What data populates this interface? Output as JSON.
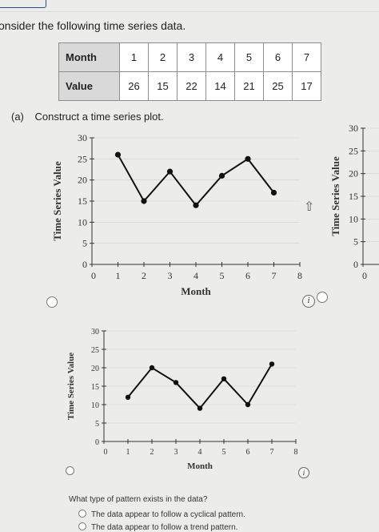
{
  "intro_text": "onsider the following time series data.",
  "table": {
    "month_label": "Month",
    "value_label": "Value",
    "months": [
      "1",
      "2",
      "3",
      "4",
      "5",
      "6",
      "7"
    ],
    "values": [
      "26",
      "15",
      "22",
      "14",
      "21",
      "25",
      "17"
    ]
  },
  "part_a": {
    "label": "(a)",
    "text": "Construct a time series plot."
  },
  "question": "What type of pattern exists in the data?",
  "options": [
    "The data appear to follow a cyclical pattern.",
    "The data appear to follow a trend pattern."
  ],
  "chart_data": [
    {
      "type": "line",
      "xlabel": "Month",
      "ylabel": "Time Series Value",
      "x": [
        1,
        2,
        3,
        4,
        5,
        6,
        7
      ],
      "y": [
        26,
        15,
        22,
        14,
        21,
        25,
        17
      ],
      "xlim": [
        0,
        8
      ],
      "ylim": [
        0,
        30
      ],
      "xticks": [
        "0",
        "1",
        "2",
        "3",
        "4",
        "5",
        "6",
        "7",
        "8"
      ],
      "yticks": [
        "0",
        "5",
        "10",
        "15",
        "20",
        "25",
        "30"
      ]
    },
    {
      "type": "line",
      "xlabel": "",
      "ylabel": "Time Series Value",
      "x": [],
      "y": [],
      "xlim": [
        0,
        8
      ],
      "ylim": [
        0,
        30
      ],
      "xticks": [
        "0"
      ],
      "yticks": [
        "0",
        "5",
        "10",
        "15",
        "20",
        "25",
        "30"
      ],
      "partial": true
    },
    {
      "type": "line",
      "xlabel": "Month",
      "ylabel": "Time Series Value",
      "x": [
        1,
        2,
        3,
        4,
        5,
        6,
        7
      ],
      "y": [
        12,
        20,
        16,
        9,
        17,
        10,
        21
      ],
      "xlim": [
        0,
        8
      ],
      "ylim": [
        0,
        30
      ],
      "xticks": [
        "0",
        "1",
        "2",
        "3",
        "4",
        "5",
        "6",
        "7",
        "8"
      ],
      "yticks": [
        "0",
        "5",
        "10",
        "15",
        "20",
        "25",
        "30"
      ]
    }
  ]
}
